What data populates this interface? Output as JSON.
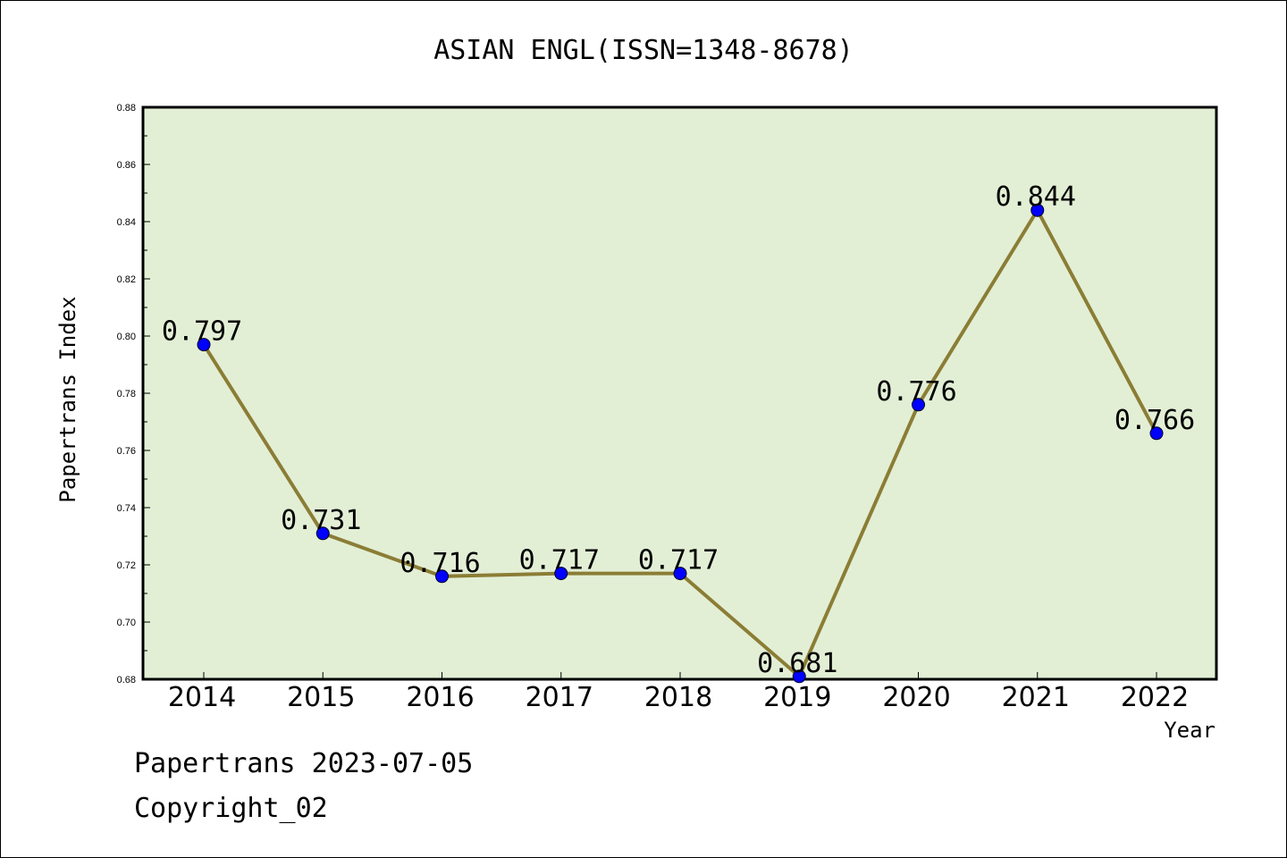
{
  "chart_data": {
    "type": "line",
    "title": "ASIAN ENGL(ISSN=1348-8678)",
    "xlabel": "Year",
    "ylabel": "Papertrans Index",
    "categories": [
      "2014",
      "2015",
      "2016",
      "2017",
      "2018",
      "2019",
      "2020",
      "2021",
      "2022"
    ],
    "series": [
      {
        "values": [
          0.797,
          0.731,
          0.716,
          0.717,
          0.717,
          0.681,
          0.776,
          0.844,
          0.766
        ],
        "data_labels": [
          "0.797",
          "0.731",
          "0.716",
          "0.717",
          "0.717",
          "0.681",
          "0.776",
          "0.844",
          "0.766"
        ]
      }
    ],
    "ylim": [
      0.68,
      0.88
    ],
    "yticks": [
      "0.68",
      "0.70",
      "0.72",
      "0.74",
      "0.76",
      "0.78",
      "0.80",
      "0.82",
      "0.84",
      "0.86",
      "0.88"
    ],
    "grid": false,
    "legend": "none",
    "colors": {
      "plot_background": "#e2efd5",
      "line": "#8b7d35",
      "marker": "#0000ff"
    }
  },
  "footer": {
    "line1": "Papertrans 2023-07-05",
    "line2": "Copyright_02"
  }
}
